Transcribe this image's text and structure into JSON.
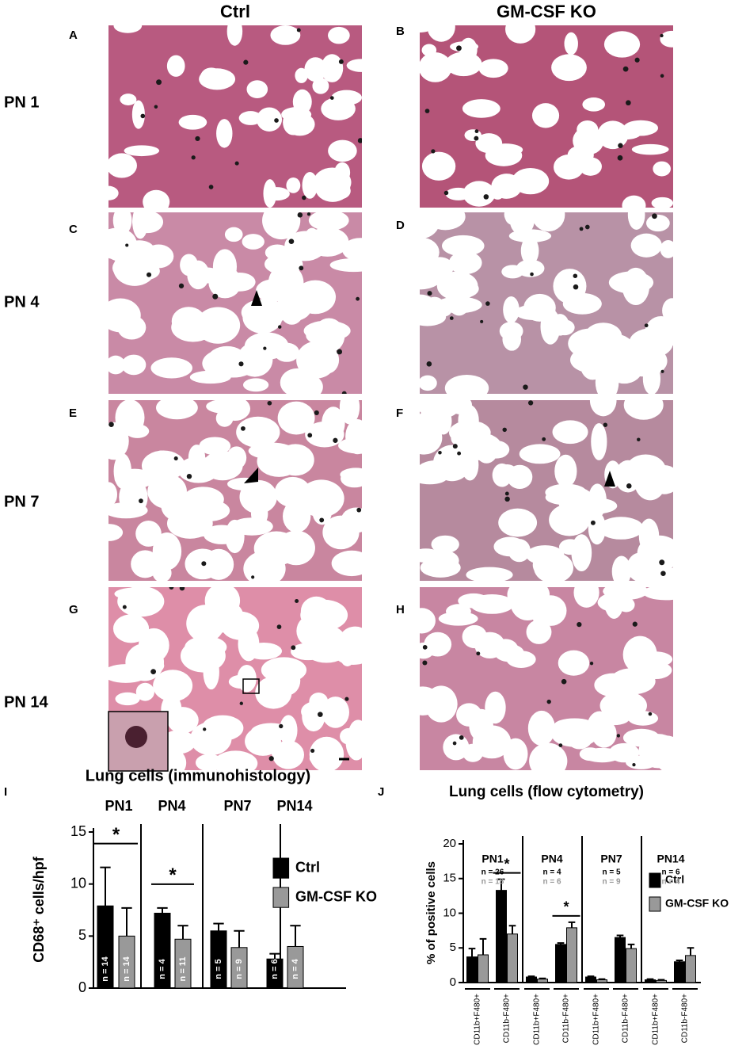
{
  "column_titles": [
    "Ctrl",
    "GM-CSF KO"
  ],
  "row_labels": [
    "PN 1",
    "PN 4",
    "PN 7",
    "PN 14"
  ],
  "panels": [
    "A",
    "B",
    "C",
    "D",
    "E",
    "F",
    "G",
    "H",
    "I",
    "J"
  ],
  "chart_data": [
    {
      "type": "bar",
      "title": "Lung cells (immunohistology)",
      "ylabel": "CD68⁺ cells/hpf",
      "categories": [
        "PN1",
        "PN4",
        "PN7",
        "PN14"
      ],
      "series": [
        {
          "name": "Ctrl",
          "color": "#000000",
          "values": [
            7.9,
            7.2,
            5.5,
            2.8
          ],
          "errors": [
            3.7,
            0.5,
            0.7,
            0.5
          ],
          "n_labels": [
            "n = 14",
            "n = 4",
            "n = 5",
            "n = 6"
          ]
        },
        {
          "name": "GM-CSF KO",
          "color": "#999999",
          "values": [
            5.0,
            4.7,
            3.9,
            4.0
          ],
          "errors": [
            2.7,
            1.3,
            1.6,
            2.0
          ],
          "n_labels": [
            "n = 14",
            "n = 11",
            "n = 9",
            "n = 4"
          ]
        }
      ],
      "ylim": [
        0,
        15
      ],
      "yticks": [
        0,
        5,
        10,
        15
      ],
      "annotations": [
        {
          "text": "*",
          "category": "PN1"
        },
        {
          "text": "*",
          "category": "PN4"
        }
      ]
    },
    {
      "type": "bar",
      "title": "Lung cells (flow cytometry)",
      "ylabel": "% of positive cells",
      "groups": [
        "PN1",
        "PN4",
        "PN7",
        "PN14"
      ],
      "categories": [
        "CD11b+F480+",
        "CD11b-F480+",
        "CD11b+F480+",
        "CD11b-F480+",
        "CD11b+F480+",
        "CD11b-F480+",
        "CD11b+F480+",
        "CD11b-F480+"
      ],
      "series": [
        {
          "name": "Ctrl",
          "color": "#000000",
          "values": [
            3.7,
            13.3,
            0.8,
            5.5,
            0.8,
            6.5,
            0.4,
            3.0
          ],
          "errors": [
            1.2,
            1.6,
            0.1,
            0.2,
            0.1,
            0.3,
            0.1,
            0.2
          ],
          "n_labels": [
            "n = 26",
            "n = 4",
            "n = 5",
            "n = 6"
          ]
        },
        {
          "name": "GM-CSF KO",
          "color": "#999999",
          "values": [
            4.0,
            7.0,
            0.5,
            7.9,
            0.4,
            4.9,
            0.3,
            3.9
          ],
          "errors": [
            2.3,
            1.2,
            0.1,
            0.8,
            0.1,
            0.6,
            0.1,
            1.1
          ],
          "n_labels": [
            "n = 18",
            "n = 6",
            "n = 9",
            "n = 4"
          ]
        }
      ],
      "ylim": [
        0,
        20
      ],
      "yticks": [
        0,
        5,
        10,
        15,
        20
      ],
      "annotations": [
        {
          "text": "*",
          "group": "PN1"
        },
        {
          "text": "*",
          "group": "PN4"
        }
      ]
    }
  ]
}
